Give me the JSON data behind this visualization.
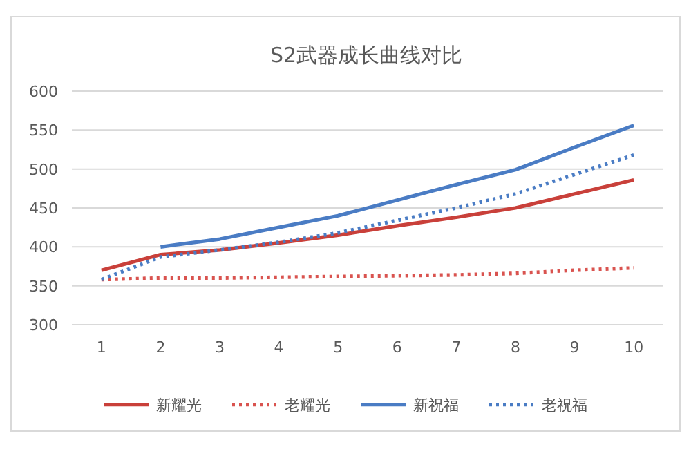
{
  "chart_data": {
    "type": "line",
    "title": "S2武器成长曲线对比",
    "categories": [
      "1",
      "2",
      "3",
      "4",
      "5",
      "6",
      "7",
      "8",
      "9",
      "10"
    ],
    "ylim": [
      300,
      600
    ],
    "yticks": [
      300,
      350,
      400,
      450,
      500,
      550,
      600
    ],
    "grid": "y",
    "legend": "bottom",
    "marker": "none",
    "series": [
      {
        "name": "新耀光",
        "color": "#c9403a",
        "line_style": "solid",
        "values": [
          370,
          390,
          396,
          405,
          415,
          427,
          438,
          450,
          468,
          486
        ]
      },
      {
        "name": "老耀光",
        "color": "#d9534f",
        "line_style": "dotted",
        "values": [
          358,
          360,
          360,
          361,
          362,
          363,
          364,
          366,
          370,
          373
        ]
      },
      {
        "name": "新祝福",
        "color": "#4a7cc4",
        "line_style": "solid",
        "values": [
          null,
          400,
          410,
          425,
          440,
          460,
          480,
          499,
          528,
          556
        ]
      },
      {
        "name": "老祝福",
        "color": "#4a7cc4",
        "line_style": "dotted",
        "values": [
          358,
          387,
          396,
          406,
          418,
          434,
          450,
          468,
          493,
          518
        ]
      }
    ]
  }
}
